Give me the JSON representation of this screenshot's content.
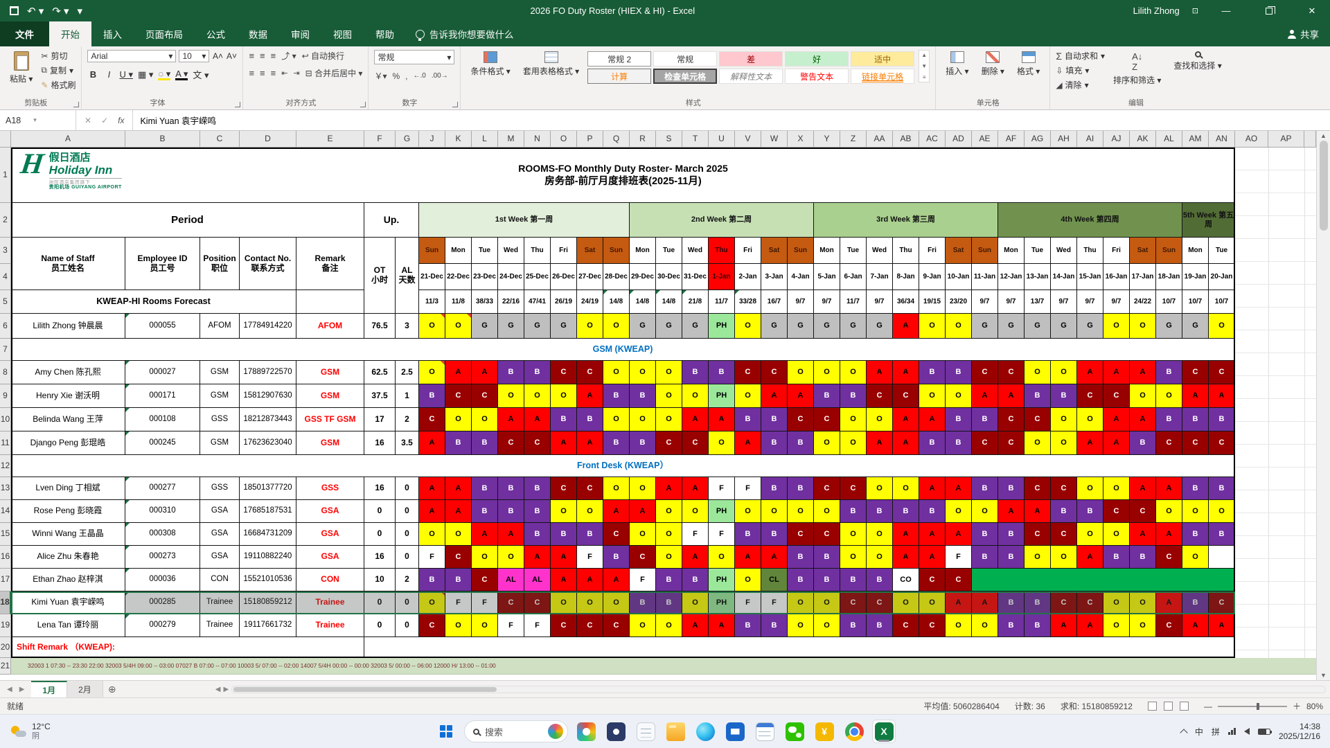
{
  "titlebar": {
    "title": "2026 FO Duty Roster (HIEX & HI)  -  Excel",
    "user": "Lilith Zhong"
  },
  "ribbon": {
    "tabs": [
      {
        "label": "文件",
        "type": "file"
      },
      {
        "label": "开始",
        "active": true
      },
      {
        "label": "插入"
      },
      {
        "label": "页面布局"
      },
      {
        "label": "公式"
      },
      {
        "label": "数据"
      },
      {
        "label": "审阅"
      },
      {
        "label": "视图"
      },
      {
        "label": "帮助"
      }
    ],
    "tell_me": "告诉我你想要做什么",
    "share": "共享",
    "font_name": "Arial",
    "font_size": "10",
    "number_format": "常规",
    "labels": {
      "paste": "粘贴",
      "cut": "剪切",
      "copy": "复制",
      "painter": "格式刷",
      "wrap": "自动换行",
      "merge": "合并后居中",
      "cond": "条件格式",
      "table_style": "套用表格格式",
      "insert": "插入",
      "del": "删除",
      "fmt": "格式",
      "autosum": "自动求和",
      "fill": "填充",
      "clear": "清除",
      "sort": "排序和筛选",
      "find": "查找和选择"
    },
    "group_names": [
      "剪贴板",
      "字体",
      "对齐方式",
      "数字",
      "样式",
      "单元格",
      "编辑"
    ],
    "style_gallery": [
      [
        "常规 2",
        "常规",
        "差",
        "好",
        "适中"
      ],
      [
        "计算",
        "检查单元格",
        "解释性文本",
        "警告文本",
        "链接单元格"
      ]
    ]
  },
  "formula_bar": {
    "name_box": "A18",
    "value": "Kimi Yuan 袁宇嵘鸣"
  },
  "sheet": {
    "col_letters": [
      "A",
      "B",
      "C",
      "D",
      "E",
      "F",
      "G",
      "J",
      "K",
      "L",
      "M",
      "N",
      "O",
      "P",
      "Q",
      "R",
      "S",
      "T",
      "U",
      "V",
      "W",
      "X",
      "Y",
      "Z",
      "AA",
      "AB",
      "AC",
      "AD",
      "AE",
      "AF",
      "AG",
      "AH",
      "AI",
      "AJ",
      "AK",
      "AL",
      "AM",
      "AN",
      "AO",
      "AP"
    ],
    "row_count": 21,
    "selected_row": 18,
    "logo": {
      "h": "H",
      "cn": "假日酒店",
      "en": "Holiday Inn",
      "group": "洲际酒店集团旗下",
      "airport_cn": "贵阳机场",
      "airport_en": "GUIYANG AIRPORT"
    },
    "title_en": "ROOMS-FO Monthly Duty Roster- March 2025",
    "title_cn": "房务部-前厅月度排班表(2025-11月)",
    "period_label": "Period",
    "up_label": "Up.",
    "left_headers": [
      {
        "en": "Name of Staff",
        "cn": "员工姓名"
      },
      {
        "en": "Employee ID",
        "cn": "员工号"
      },
      {
        "en": "Position",
        "cn": "职位"
      },
      {
        "en": "Contact No.",
        "cn": "联系方式"
      },
      {
        "en": "Remark",
        "cn": "备注"
      }
    ],
    "ot_header": {
      "en": "OT",
      "cn": "小时"
    },
    "al_header": {
      "en": "AL",
      "cn": "天数"
    },
    "weeks": [
      {
        "label": "1st Week 第一周",
        "span": 8,
        "color": "#E2EFDA"
      },
      {
        "label": "2nd Week 第二周",
        "span": 7,
        "color": "#C6E0B4"
      },
      {
        "label": "3rd Week 第三周",
        "span": 7,
        "color": "#A9D08E"
      },
      {
        "label": "4th Week 第四周",
        "span": 7,
        "color": "#70924E"
      },
      {
        "label": "5th Week 第五周",
        "span": 2,
        "color": "#526C36"
      }
    ],
    "days": [
      {
        "dow": "Sun",
        "date": "21-Dec",
        "t": "we"
      },
      {
        "dow": "Mon",
        "date": "22-Dec",
        "t": "wd"
      },
      {
        "dow": "Tue",
        "date": "23-Dec",
        "t": "wd"
      },
      {
        "dow": "Wed",
        "date": "24-Dec",
        "t": "wd"
      },
      {
        "dow": "Thu",
        "date": "25-Dec",
        "t": "wd"
      },
      {
        "dow": "Fri",
        "date": "26-Dec",
        "t": "wd"
      },
      {
        "dow": "Sat",
        "date": "27-Dec",
        "t": "we"
      },
      {
        "dow": "Sun",
        "date": "28-Dec",
        "t": "we"
      },
      {
        "dow": "Mon",
        "date": "29-Dec",
        "t": "wd"
      },
      {
        "dow": "Tue",
        "date": "30-Dec",
        "t": "wd"
      },
      {
        "dow": "Wed",
        "date": "31-Dec",
        "t": "wd"
      },
      {
        "dow": "Thu",
        "date": "1-Jan",
        "t": "hol"
      },
      {
        "dow": "Fri",
        "date": "2-Jan",
        "t": "wd"
      },
      {
        "dow": "Sat",
        "date": "3-Jan",
        "t": "we"
      },
      {
        "dow": "Sun",
        "date": "4-Jan",
        "t": "we"
      },
      {
        "dow": "Mon",
        "date": "5-Jan",
        "t": "wd"
      },
      {
        "dow": "Tue",
        "date": "6-Jan",
        "t": "wd"
      },
      {
        "dow": "Wed",
        "date": "7-Jan",
        "t": "wd"
      },
      {
        "dow": "Thu",
        "date": "8-Jan",
        "t": "wd"
      },
      {
        "dow": "Fri",
        "date": "9-Jan",
        "t": "wd"
      },
      {
        "dow": "Sat",
        "date": "10-Jan",
        "t": "we"
      },
      {
        "dow": "Sun",
        "date": "11-Jan",
        "t": "we"
      },
      {
        "dow": "Mon",
        "date": "12-Jan",
        "t": "wd"
      },
      {
        "dow": "Tue",
        "date": "13-Jan",
        "t": "wd"
      },
      {
        "dow": "Wed",
        "date": "14-Jan",
        "t": "wd"
      },
      {
        "dow": "Thu",
        "date": "15-Jan",
        "t": "wd"
      },
      {
        "dow": "Fri",
        "date": "16-Jan",
        "t": "wd"
      },
      {
        "dow": "Sat",
        "date": "17-Jan",
        "t": "we"
      },
      {
        "dow": "Sun",
        "date": "18-Jan",
        "t": "we"
      },
      {
        "dow": "Mon",
        "date": "19-Jan",
        "t": "wd"
      },
      {
        "dow": "Tue",
        "date": "20-Jan",
        "t": "wd"
      }
    ],
    "forecast_label": "KWEAP-HI Rooms Forecast",
    "forecast": [
      "11/3",
      "11/8",
      "38/33",
      "22/16",
      "47/41",
      "26/19",
      "24/19",
      "14/8",
      "14/8",
      "14/8",
      "21/8",
      "11/7",
      "33/28",
      "16/7",
      "9/7",
      "9/7",
      "11/7",
      "9/7",
      "36/34",
      "19/15",
      "23/20",
      "9/7",
      "9/7",
      "13/7",
      "9/7",
      "9/7",
      "9/7",
      "24/22",
      "10/7",
      "10/7",
      "10/7"
    ],
    "forecast_tri": [
      8,
      9,
      10,
      11,
      13
    ],
    "sections": [
      {
        "row": 7,
        "label": "GSM (KWEAP)"
      },
      {
        "row": 12,
        "label": "Front Desk (KWEAP）"
      }
    ],
    "code_colors": {
      "O": {
        "bg": "#FFFF00",
        "fg": "#000000"
      },
      "A": {
        "bg": "#FF0000",
        "fg": "#000000"
      },
      "B": {
        "bg": "#7030A0",
        "fg": "#FFFFFF"
      },
      "C": {
        "bg": "#990000",
        "fg": "#FFFFFF"
      },
      "G": {
        "bg": "#BFBFBF",
        "fg": "#000000"
      },
      "PH": {
        "bg": "#9BE89B",
        "fg": "#000000"
      },
      "F": {
        "bg": "#FFFFFF",
        "fg": "#000000"
      },
      "AL": {
        "bg": "#FF33CC",
        "fg": "#000000"
      },
      "CL": {
        "bg": "#61863B",
        "fg": "#000000"
      },
      "CO": {
        "bg": "#FFFFFF",
        "fg": "#000000"
      },
      "": {
        "bg": "#FFFFFF",
        "fg": "#000000"
      }
    },
    "staff": [
      {
        "row": 6,
        "name": "Lilith Zhong 钟晨晨",
        "id": "000055",
        "pos": "AFOM",
        "contact": "17784914220",
        "remark": "AFOM",
        "ot": "76.5",
        "al": "3",
        "tri": [
          1,
          2
        ],
        "codes": [
          "O",
          "O",
          "G",
          "G",
          "G",
          "G",
          "O",
          "O",
          "G",
          "G",
          "G",
          "PH",
          "O",
          "G",
          "G",
          "G",
          "G",
          "G",
          "A",
          "O",
          "O",
          "G",
          "G",
          "G",
          "G",
          "G",
          "O",
          "O",
          "G",
          "G",
          "O"
        ]
      },
      {
        "row": 8,
        "name": "Amy Chen 陈孔熙",
        "id": "000027",
        "pos": "GSM",
        "contact": "17889722570",
        "remark": "GSM",
        "ot": "62.5",
        "al": "2.5",
        "tri": [
          1
        ],
        "codes": [
          "O",
          "A",
          "A",
          "B",
          "B",
          "C",
          "C",
          "O",
          "O",
          "O",
          "B",
          "B",
          "C",
          "C",
          "O",
          "O",
          "O",
          "A",
          "A",
          "B",
          "B",
          "C",
          "C",
          "O",
          "O",
          "A",
          "A",
          "A",
          "B",
          "C",
          "C"
        ]
      },
      {
        "row": 9,
        "name": "Henry Xie 谢沃明",
        "id": "000171",
        "pos": "GSM",
        "contact": "15812907630",
        "remark": "GSM",
        "ot": "37.5",
        "al": "1",
        "codes": [
          "B",
          "C",
          "C",
          "O",
          "O",
          "O",
          "A",
          "B",
          "B",
          "O",
          "O",
          "PH",
          "O",
          "A",
          "A",
          "B",
          "B",
          "C",
          "C",
          "O",
          "O",
          "A",
          "A",
          "B",
          "B",
          "C",
          "C",
          "O",
          "O",
          "A",
          "A"
        ]
      },
      {
        "row": 10,
        "name": "Belinda Wang 王萍",
        "id": "000108",
        "pos": "GSS",
        "contact": "18212873443",
        "remark": "GSS TF GSM",
        "ot": "17",
        "al": "2",
        "codes": [
          "C",
          "O",
          "O",
          "A",
          "A",
          "B",
          "B",
          "O",
          "O",
          "O",
          "A",
          "A",
          "B",
          "B",
          "C",
          "C",
          "O",
          "O",
          "A",
          "A",
          "B",
          "B",
          "C",
          "C",
          "O",
          "O",
          "A",
          "A",
          "B",
          "B",
          "B"
        ]
      },
      {
        "row": 11,
        "name": "Django Peng 彭琨皓",
        "id": "000245",
        "pos": "GSM",
        "contact": "17623623040",
        "remark": "GSM",
        "ot": "16",
        "al": "3.5",
        "codes": [
          "A",
          "B",
          "B",
          "C",
          "C",
          "A",
          "A",
          "B",
          "B",
          "C",
          "C",
          "O",
          "A",
          "B",
          "B",
          "O",
          "O",
          "A",
          "A",
          "B",
          "B",
          "C",
          "C",
          "O",
          "O",
          "A",
          "A",
          "B",
          "C",
          "C",
          "C"
        ]
      },
      {
        "row": 13,
        "name": "Lven Ding 丁相斌",
        "id": "000277",
        "pos": "GSS",
        "contact": "18501377720",
        "remark": "GSS",
        "ot": "16",
        "al": "0",
        "codes": [
          "A",
          "A",
          "B",
          "B",
          "B",
          "C",
          "C",
          "O",
          "O",
          "A",
          "A",
          "F",
          "F",
          "B",
          "B",
          "C",
          "C",
          "O",
          "O",
          "A",
          "A",
          "B",
          "B",
          "C",
          "C",
          "O",
          "O",
          "A",
          "A",
          "B",
          "B"
        ]
      },
      {
        "row": 14,
        "name": "Rose Peng 彭晓霞",
        "id": "000310",
        "pos": "GSA",
        "contact": "17685187531",
        "remark": "GSA",
        "ot": "0",
        "al": "0",
        "codes": [
          "A",
          "A",
          "B",
          "B",
          "B",
          "O",
          "O",
          "A",
          "A",
          "O",
          "O",
          "PH",
          "O",
          "O",
          "O",
          "O",
          "B",
          "B",
          "B",
          "B",
          "O",
          "O",
          "A",
          "A",
          "B",
          "B",
          "C",
          "C",
          "O",
          "O",
          "O"
        ]
      },
      {
        "row": 15,
        "name": "Winni Wang 王晶晶",
        "id": "000308",
        "pos": "GSA",
        "contact": "16684731209",
        "remark": "GSA",
        "ot": "0",
        "al": "0",
        "codes": [
          "O",
          "O",
          "A",
          "A",
          "B",
          "B",
          "B",
          "C",
          "O",
          "O",
          "F",
          "F",
          "B",
          "B",
          "C",
          "C",
          "O",
          "O",
          "A",
          "A",
          "A",
          "B",
          "B",
          "C",
          "C",
          "O",
          "O",
          "A",
          "A",
          "B",
          "B"
        ]
      },
      {
        "row": 16,
        "name": "Alice Zhu 朱春艳",
        "id": "000273",
        "pos": "GSA",
        "contact": "19110882240",
        "remark": "GSA",
        "ot": "16",
        "al": "0",
        "codes": [
          "F",
          "C",
          "O",
          "O",
          "A",
          "A",
          "F",
          "B",
          "C",
          "O",
          "A",
          "O",
          "A",
          "A",
          "B",
          "B",
          "O",
          "O",
          "A",
          "A",
          "F",
          "B",
          "B",
          "O",
          "O",
          "A",
          "B",
          "B",
          "C",
          "O",
          ""
        ]
      },
      {
        "row": 17,
        "name": "Ethan Zhao 赵梓淇",
        "id": "000036",
        "pos": "CON",
        "contact": "15521010536",
        "remark": "CON",
        "ot": "10",
        "al": "2",
        "merge_green": 10,
        "codes": [
          "B",
          "B",
          "C",
          "AL",
          "AL",
          "A",
          "A",
          "A",
          "F",
          "B",
          "B",
          "PH",
          "O",
          "CL",
          "B",
          "B",
          "B",
          "B",
          "CO",
          "C",
          "C"
        ]
      },
      {
        "row": 18,
        "name": "Kimi Yuan 袁宇嵘鸣",
        "id": "000285",
        "pos": "Trainee",
        "contact": "15180859212",
        "remark": "Trainee",
        "ot": "0",
        "al": "0",
        "selected": true,
        "tri": [
          1
        ],
        "codes": [
          "O",
          "F",
          "F",
          "C",
          "C",
          "O",
          "O",
          "O",
          "B",
          "B",
          "O",
          "PH",
          "F",
          "F",
          "O",
          "O",
          "C",
          "C",
          "O",
          "O",
          "A",
          "A",
          "B",
          "B",
          "C",
          "C",
          "O",
          "O",
          "A",
          "B",
          "C"
        ]
      },
      {
        "row": 19,
        "name": "Lena Tan 谭玲丽",
        "id": "000279",
        "pos": "Trainee",
        "contact": "19117661732",
        "remark": "Trainee",
        "ot": "0",
        "al": "0",
        "codes": [
          "C",
          "O",
          "O",
          "F",
          "F",
          "C",
          "C",
          "C",
          "O",
          "O",
          "A",
          "A",
          "B",
          "B",
          "O",
          "O",
          "B",
          "B",
          "C",
          "C",
          "O",
          "O",
          "B",
          "B",
          "A",
          "A",
          "O",
          "O",
          "C",
          "A",
          "A"
        ]
      }
    ],
    "shift_remark_label": "Shift Remark （KWEAP):",
    "cut_row_text": "32003 1 07:30 -- 23:30      22:00      32003 5/4H 09:00 -- 03:00      07027 B 07:00 -- 07:00      10003 5/ 07:00 -- 02:00      14007 5/4H 00:00 -- 00:00      32003 5/ 00:00 -- 06:00      12000 H/ 13:00 -- 01:00",
    "tabs": [
      "1月",
      "2月"
    ]
  },
  "status_bar": {
    "ready": "就绪",
    "average_label": "平均值:",
    "average": "5060286404",
    "count_label": "计数:",
    "count": "36",
    "sum_label": "求和:",
    "sum": "15180859212",
    "zoom": "80%"
  },
  "taskbar": {
    "weather_temp": "12°C",
    "weather_cond": "阴",
    "search_placeholder": "搜索",
    "icons": [
      "meeting",
      "contacts",
      "notepad",
      "explorer",
      "edge",
      "mail",
      "sheets",
      "wechat",
      "wps",
      "chrome",
      "excel"
    ],
    "active_icon": "excel",
    "excel_letter": "X",
    "ime": [
      "中",
      "拼"
    ],
    "time": "14:38",
    "date": "2025/12/16"
  }
}
